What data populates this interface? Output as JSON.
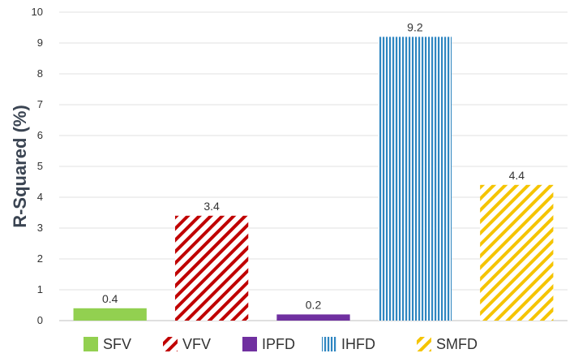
{
  "chart_data": {
    "type": "bar",
    "ylabel": "R-Squared (%)",
    "xlabel": "",
    "ylim": [
      0,
      10
    ],
    "yticks": [
      "0",
      "1",
      "2",
      "3",
      "4",
      "5",
      "6",
      "7",
      "8",
      "9",
      "10"
    ],
    "grid": true,
    "legend_position": "bottom",
    "series": [
      {
        "name": "SFV",
        "value": 0.4,
        "label": "0.4",
        "color": "#92d050",
        "pattern": "solid"
      },
      {
        "name": "VFV",
        "value": 3.4,
        "label": "3.4",
        "color": "#c00000",
        "pattern": "diagonal"
      },
      {
        "name": "IPFD",
        "value": 0.2,
        "label": "0.2",
        "color": "#7030a0",
        "pattern": "solid"
      },
      {
        "name": "IHFD",
        "value": 9.2,
        "label": "9.2",
        "color": "#2e86c1",
        "pattern": "vertical"
      },
      {
        "name": "SMFD",
        "value": 4.4,
        "label": "4.4",
        "color": "#f5c400",
        "pattern": "diagonal"
      }
    ]
  }
}
